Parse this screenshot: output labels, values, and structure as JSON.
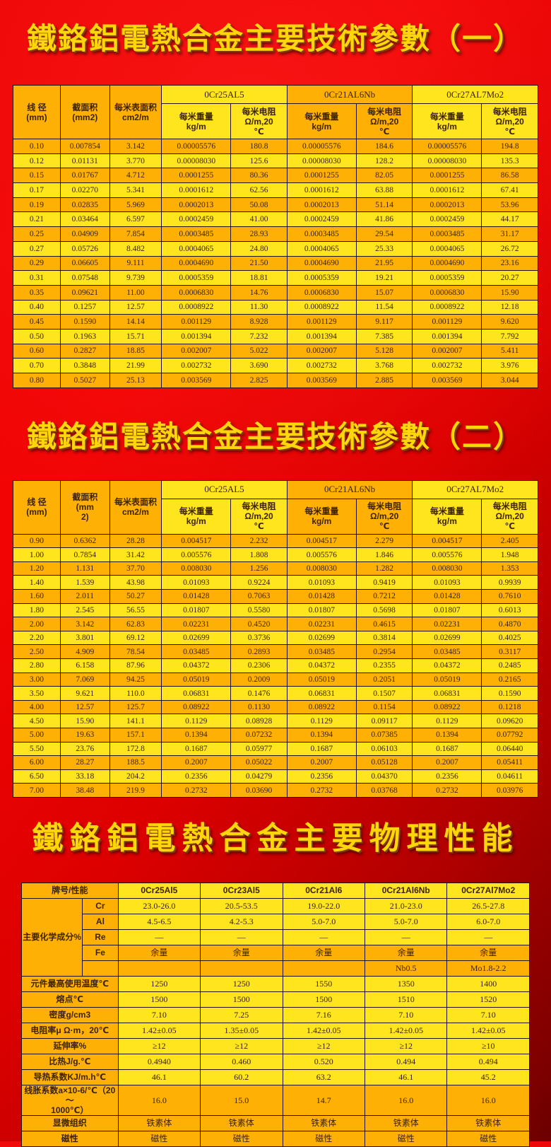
{
  "titles": {
    "t1": "鐵鉻鋁電熱合金主要技術參數（一）",
    "t2": "鐵鉻鋁電熱合金主要技術參數（二）",
    "t3": "鐵鉻鋁電熱合金主要物理性能"
  },
  "colors": {
    "background_red": "#e60000",
    "cell_orange": "#feb104",
    "cell_yellow": "#ffe51e",
    "title_gold": "#ffd60a",
    "text_brown": "#3c2200"
  },
  "param_headers": {
    "diameter": "线 径\n(mm)",
    "area_t1": "截面积\n(mm2)",
    "area_t2": "截面积\n(mm\n2)",
    "surface": "每米表面积\ncm2/m",
    "weight_t1": "每米重量\nkg/m",
    "weight_t2": "每米重量\nkg/m",
    "resistance": "每米电阻\nΩ/m,20\n℃"
  },
  "table1": {
    "alloys": [
      "0Cr25AL5",
      "0Cr21AL6Nb",
      "0Cr27AL7Mo2"
    ],
    "rows": [
      [
        "0.10",
        "0.007854",
        "3.142",
        "0.00005576",
        "180.8",
        "0.00005576",
        "184.6",
        "0.00005576",
        "194.8"
      ],
      [
        "0.12",
        "0.01131",
        "3.770",
        "0.00008030",
        "125.6",
        "0.00008030",
        "128.2",
        "0.00008030",
        "135.3"
      ],
      [
        "0.15",
        "0.01767",
        "4.712",
        "0.0001255",
        "80.36",
        "0.0001255",
        "82.05",
        "0.0001255",
        "86.58"
      ],
      [
        "0.17",
        "0.02270",
        "5.341",
        "0.0001612",
        "62.56",
        "0.0001612",
        "63.88",
        "0.0001612",
        "67.41"
      ],
      [
        "0.19",
        "0.02835",
        "5.969",
        "0.0002013",
        "50.08",
        "0.0002013",
        "51.14",
        "0.0002013",
        "53.96"
      ],
      [
        "0.21",
        "0.03464",
        "6.597",
        "0.0002459",
        "41.00",
        "0.0002459",
        "41.86",
        "0.0002459",
        "44.17"
      ],
      [
        "0.25",
        "0.04909",
        "7.854",
        "0.0003485",
        "28.93",
        "0.0003485",
        "29.54",
        "0.0003485",
        "31.17"
      ],
      [
        "0.27",
        "0.05726",
        "8.482",
        "0.0004065",
        "24.80",
        "0.0004065",
        "25.33",
        "0.0004065",
        "26.72"
      ],
      [
        "0.29",
        "0.06605",
        "9.111",
        "0.0004690",
        "21.50",
        "0.0004690",
        "21.95",
        "0.0004690",
        "23.16"
      ],
      [
        "0.31",
        "0.07548",
        "9.739",
        "0.0005359",
        "18.81",
        "0.0005359",
        "19.21",
        "0.0005359",
        "20.27"
      ],
      [
        "0.35",
        "0.09621",
        "11.00",
        "0.0006830",
        "14.76",
        "0.0006830",
        "15.07",
        "0.0006830",
        "15.90"
      ],
      [
        "0.40",
        "0.1257",
        "12.57",
        "0.0008922",
        "11.30",
        "0.0008922",
        "11.54",
        "0.0008922",
        "12.18"
      ],
      [
        "0.45",
        "0.1590",
        "14.14",
        "0.001129",
        "8.928",
        "0.001129",
        "9.117",
        "0.001129",
        "9.620"
      ],
      [
        "0.50",
        "0.1963",
        "15.71",
        "0.001394",
        "7.232",
        "0.001394",
        "7.385",
        "0.001394",
        "7.792"
      ],
      [
        "0.60",
        "0.2827",
        "18.85",
        "0.002007",
        "5.022",
        "0.002007",
        "5.128",
        "0.002007",
        "5.411"
      ],
      [
        "0.70",
        "0.3848",
        "21.99",
        "0.002732",
        "3.690",
        "0.002732",
        "3.768",
        "0.002732",
        "3.976"
      ],
      [
        "0.80",
        "0.5027",
        "25.13",
        "0.003569",
        "2.825",
        "0.003569",
        "2.885",
        "0.003569",
        "3.044"
      ]
    ]
  },
  "table2": {
    "alloys": [
      "0Cr25AL5",
      "0Cr21AL6Nb",
      "0Cr27AL7Mo2"
    ],
    "rows": [
      [
        "0.90",
        "0.6362",
        "28.28",
        "0.004517",
        "2.232",
        "0.004517",
        "2.279",
        "0.004517",
        "2.405"
      ],
      [
        "1.00",
        "0.7854",
        "31.42",
        "0.005576",
        "1.808",
        "0.005576",
        "1.846",
        "0.005576",
        "1.948"
      ],
      [
        "1.20",
        "1.131",
        "37.70",
        "0.008030",
        "1.256",
        "0.008030",
        "1.282",
        "0.008030",
        "1.353"
      ],
      [
        "1.40",
        "1.539",
        "43.98",
        "0.01093",
        "0.9224",
        "0.01093",
        "0.9419",
        "0.01093",
        "0.9939"
      ],
      [
        "1.60",
        "2.011",
        "50.27",
        "0.01428",
        "0.7063",
        "0.01428",
        "0.7212",
        "0.01428",
        "0.7610"
      ],
      [
        "1.80",
        "2.545",
        "56.55",
        "0.01807",
        "0.5580",
        "0.01807",
        "0.5698",
        "0.01807",
        "0.6013"
      ],
      [
        "2.00",
        "3.142",
        "62.83",
        "0.02231",
        "0.4520",
        "0.02231",
        "0.4615",
        "0.02231",
        "0.4870"
      ],
      [
        "2.20",
        "3.801",
        "69.12",
        "0.02699",
        "0.3736",
        "0.02699",
        "0.3814",
        "0.02699",
        "0.4025"
      ],
      [
        "2.50",
        "4.909",
        "78.54",
        "0.03485",
        "0.2893",
        "0.03485",
        "0.2954",
        "0.03485",
        "0.3117"
      ],
      [
        "2.80",
        "6.158",
        "87.96",
        "0.04372",
        "0.2306",
        "0.04372",
        "0.2355",
        "0.04372",
        "0.2485"
      ],
      [
        "3.00",
        "7.069",
        "94.25",
        "0.05019",
        "0.2009",
        "0.05019",
        "0.2051",
        "0.05019",
        "0.2165"
      ],
      [
        "3.50",
        "9.621",
        "110.0",
        "0.06831",
        "0.1476",
        "0.06831",
        "0.1507",
        "0.06831",
        "0.1590"
      ],
      [
        "4.00",
        "12.57",
        "125.7",
        "0.08922",
        "0.1130",
        "0.08922",
        "0.1154",
        "0.08922",
        "0.1218"
      ],
      [
        "4.50",
        "15.90",
        "141.1",
        "0.1129",
        "0.08928",
        "0.1129",
        "0.09117",
        "0.1129",
        "0.09620"
      ],
      [
        "5.00",
        "19.63",
        "157.1",
        "0.1394",
        "0.07232",
        "0.1394",
        "0.07385",
        "0.1394",
        "0.07792"
      ],
      [
        "5.50",
        "23.76",
        "172.8",
        "0.1687",
        "0.05977",
        "0.1687",
        "0.06103",
        "0.1687",
        "0.06440"
      ],
      [
        "6.00",
        "28.27",
        "188.5",
        "0.2007",
        "0.05022",
        "0.2007",
        "0.05128",
        "0.2007",
        "0.05411"
      ],
      [
        "6.50",
        "33.18",
        "204.2",
        "0.2356",
        "0.04279",
        "0.2356",
        "0.04370",
        "0.2356",
        "0.04611"
      ],
      [
        "7.00",
        "38.48",
        "219.9",
        "0.2732",
        "0.03690",
        "0.2732",
        "0.03768",
        "0.2732",
        "0.03976"
      ]
    ]
  },
  "table3": {
    "corner_label": "牌号/性能",
    "alloys": [
      "0Cr25Al5",
      "0Cr23Al5",
      "0Cr21Al6",
      "0Cr21Al6Nb",
      "0Cr27Al7Mo2"
    ],
    "chem_group_label": "主要化学成分%",
    "chem_rows": [
      {
        "label": "Cr",
        "values": [
          "23.0-26.0",
          "20.5-53.5",
          "19.0-22.0",
          "21.0-23.0",
          "26.5-27.8"
        ],
        "tone": "ye"
      },
      {
        "label": "Al",
        "values": [
          "4.5-6.5",
          "4.2-5.3",
          "5.0-7.0",
          "5.0-7.0",
          "6.0-7.0"
        ],
        "tone": "ye"
      },
      {
        "label": "Re",
        "values": [
          "—",
          "—",
          "—",
          "—",
          "—"
        ],
        "tone": "ye"
      },
      {
        "label": "Fe",
        "values": [
          "余量",
          "余量",
          "余量",
          "余量",
          "余量"
        ],
        "tone": "or"
      },
      {
        "label": "",
        "values": [
          "",
          "",
          "",
          "Nb0.5",
          "Mo1.8-2.2"
        ],
        "tone": "or"
      }
    ],
    "prop_rows": [
      {
        "label": "元件最高使用温度℃",
        "values": [
          "1250",
          "1250",
          "1550",
          "1350",
          "1400"
        ],
        "tone": "ye"
      },
      {
        "label": "熔点℃",
        "values": [
          "1500",
          "1500",
          "1500",
          "1510",
          "1520"
        ],
        "tone": "ye"
      },
      {
        "label": "密度g/cm3",
        "values": [
          "7.10",
          "7.25",
          "7.16",
          "7.10",
          "7.10"
        ],
        "tone": "ye"
      },
      {
        "label": "电阻率μ Ω·m，20℃",
        "values": [
          "1.42±0.05",
          "1.35±0.05",
          "1.42±0.05",
          "1.42±0.05",
          "1.42±0.05"
        ],
        "tone": "ye"
      },
      {
        "label": "延伸率%",
        "values": [
          "≥12",
          "≥12",
          "≥12",
          "≥12",
          "≥10"
        ],
        "tone": "ye"
      },
      {
        "label": "比热J/g.℃",
        "values": [
          "0.4940",
          "0.460",
          "0.520",
          "0.494",
          "0.494"
        ],
        "tone": "ye"
      },
      {
        "label": "导热系数KJ/m.h℃",
        "values": [
          "46.1",
          "60.2",
          "63.2",
          "46.1",
          "45.2"
        ],
        "tone": "ye"
      },
      {
        "label": "线胀系数a×10-6/℃（20～\n1000℃）",
        "values": [
          "16.0",
          "15.0",
          "14.7",
          "16.0",
          "16.0"
        ],
        "tone": "or"
      },
      {
        "label": "显微组织",
        "values": [
          "铁素体",
          "铁素体",
          "铁素体",
          "铁素体",
          "铁素体"
        ],
        "tone": "or"
      },
      {
        "label": "磁性",
        "values": [
          "磁性",
          "磁性",
          "磁性",
          "磁性",
          "磁性"
        ],
        "tone": "or"
      }
    ]
  }
}
